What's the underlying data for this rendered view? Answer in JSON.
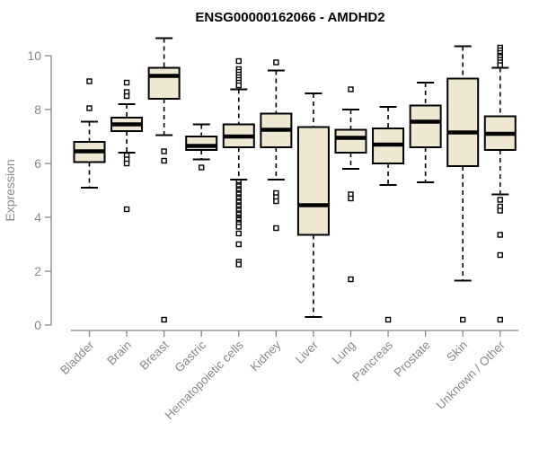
{
  "chart_data": {
    "type": "boxplot",
    "title": "ENSG00000162066 - AMDHD2",
    "ylabel": "Expression",
    "xlabel": "",
    "ylim": [
      0,
      10
    ],
    "yticks": [
      0,
      2,
      4,
      6,
      8,
      10
    ],
    "grid": false,
    "legend": "none",
    "colors": {
      "box_fill": "#eee8d2",
      "box_stroke": "#000000",
      "median_stroke": "#000000",
      "whisker_stroke": "#000000",
      "outlier_stroke": "#000000",
      "axis_line": "#888888",
      "axis_text": "#8a8a8a",
      "title_text": "#000000",
      "background": "#ffffff"
    },
    "categories": [
      "Bladder",
      "Brain",
      "Breast",
      "Gastric",
      "Hematopoietic cells",
      "Kidney",
      "Liver",
      "Lung",
      "Pancreas",
      "Prostate",
      "Skin",
      "Unknown / Other"
    ],
    "series": [
      {
        "category": "Bladder",
        "whisker_low": 5.1,
        "q1": 6.05,
        "median": 6.45,
        "q3": 6.8,
        "whisker_high": 7.55,
        "outliers": [
          8.05,
          9.05
        ]
      },
      {
        "category": "Brain",
        "whisker_low": 6.4,
        "q1": 7.2,
        "median": 7.45,
        "q3": 7.7,
        "whisker_high": 8.2,
        "outliers": [
          9.0,
          8.65,
          8.5,
          6.3,
          6.15,
          6.0,
          4.3
        ]
      },
      {
        "category": "Breast",
        "whisker_low": 7.05,
        "q1": 8.4,
        "median": 9.25,
        "q3": 9.55,
        "whisker_high": 10.65,
        "outliers": [
          6.45,
          6.1,
          0.2
        ]
      },
      {
        "category": "Gastric",
        "whisker_low": 6.15,
        "q1": 6.5,
        "median": 6.65,
        "q3": 7.0,
        "whisker_high": 7.45,
        "outliers": [
          5.85
        ]
      },
      {
        "category": "Hematopoietic cells",
        "whisker_low": 5.4,
        "q1": 6.6,
        "median": 7.0,
        "q3": 7.45,
        "whisker_high": 8.75,
        "outliers": [
          9.8,
          9.5,
          9.4,
          9.3,
          9.2,
          9.1,
          9.0,
          8.9,
          5.3,
          5.2,
          5.15,
          5.05,
          5.0,
          4.9,
          4.85,
          4.75,
          4.7,
          4.6,
          4.55,
          4.45,
          4.4,
          4.3,
          4.25,
          4.15,
          4.1,
          4.0,
          3.95,
          3.9,
          3.8,
          3.75,
          3.65,
          3.4,
          3.0,
          2.35,
          2.25
        ]
      },
      {
        "category": "Kidney",
        "whisker_low": 5.4,
        "q1": 6.6,
        "median": 7.25,
        "q3": 7.85,
        "whisker_high": 9.45,
        "outliers": [
          9.75,
          4.9,
          4.75,
          4.6,
          3.6
        ]
      },
      {
        "category": "Liver",
        "whisker_low": 0.3,
        "q1": 3.35,
        "median": 4.45,
        "q3": 7.35,
        "whisker_high": 8.6,
        "outliers": []
      },
      {
        "category": "Lung",
        "whisker_low": 5.8,
        "q1": 6.4,
        "median": 6.95,
        "q3": 7.25,
        "whisker_high": 8.0,
        "outliers": [
          8.75,
          4.85,
          4.7,
          1.7
        ]
      },
      {
        "category": "Pancreas",
        "whisker_low": 5.2,
        "q1": 6.0,
        "median": 6.7,
        "q3": 7.3,
        "whisker_high": 8.1,
        "outliers": [
          0.2
        ]
      },
      {
        "category": "Prostate",
        "whisker_low": 5.3,
        "q1": 6.6,
        "median": 7.55,
        "q3": 8.15,
        "whisker_high": 9.0,
        "outliers": []
      },
      {
        "category": "Skin",
        "whisker_low": 1.65,
        "q1": 5.9,
        "median": 7.15,
        "q3": 9.15,
        "whisker_high": 10.35,
        "outliers": [
          0.2
        ]
      },
      {
        "category": "Unknown / Other",
        "whisker_low": 4.85,
        "q1": 6.5,
        "median": 7.1,
        "q3": 7.75,
        "whisker_high": 9.55,
        "outliers": [
          10.3,
          10.2,
          10.1,
          10.0,
          9.95,
          9.85,
          9.75,
          9.65,
          4.65,
          4.4,
          4.25,
          3.35,
          2.6,
          0.2
        ]
      }
    ]
  }
}
